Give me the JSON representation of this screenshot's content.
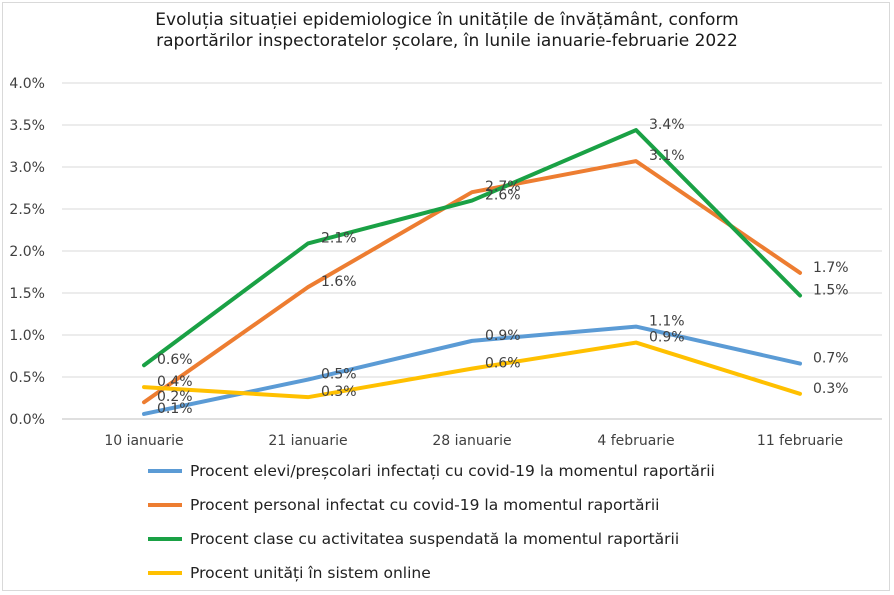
{
  "chart_data": {
    "type": "line",
    "title": "Evoluția situației epidemiologice în unitățile de învățământ, conform raportărilor inspectoratelor școlare, în lunile ianuarie-februarie 2022",
    "title_lines": [
      "Evoluția situației epidemiologice în unitățile de învățământ, conform",
      "raportărilor inspectoratelor școlare, în lunile ianuarie-februarie 2022"
    ],
    "categories": [
      "10 ianuarie",
      "21 ianuarie",
      "28 ianuarie",
      "4 februarie",
      "11 februarie"
    ],
    "ylim": [
      0,
      4.0
    ],
    "y_ticks": [
      0,
      0.5,
      1.0,
      1.5,
      2.0,
      2.5,
      3.0,
      3.5,
      4.0
    ],
    "y_tick_labels": [
      "0.0%",
      "0.5%",
      "1.0%",
      "1.5%",
      "2.0%",
      "2.5%",
      "3.0%",
      "3.5%",
      "4.0%"
    ],
    "grid": true,
    "legend_position": "bottom",
    "series": [
      {
        "name": "Procent elevi/preșcolari infectați cu covid-19 la momentul raportării",
        "color": "#5b9bd5",
        "values": [
          0.06,
          0.47,
          0.93,
          1.1,
          0.66
        ],
        "labels": [
          "0.1%",
          "0.5%",
          "0.9%",
          "1.1%",
          "0.7%"
        ]
      },
      {
        "name": "Procent personal infectat cu covid-19 la momentul raportării",
        "color": "#ed7d31",
        "values": [
          0.2,
          1.57,
          2.7,
          3.07,
          1.74
        ],
        "labels": [
          "0.2%",
          "1.6%",
          "2.7%",
          "3.1%",
          "1.7%"
        ]
      },
      {
        "name": "Procent clase cu activitatea suspendată la momentul raportării",
        "color": "#1aa145",
        "values": [
          0.64,
          2.09,
          2.6,
          3.44,
          1.47
        ],
        "labels": [
          "0.6%",
          "2.1%",
          "2.6%",
          "3.4%",
          "1.5%"
        ]
      },
      {
        "name": "Procent unități în sistem online",
        "color": "#ffc000",
        "values": [
          0.38,
          0.26,
          0.6,
          0.91,
          0.3
        ],
        "labels": [
          "0.4%",
          "0.3%",
          "0.6%",
          "0.9%",
          "0.3%"
        ]
      }
    ]
  }
}
